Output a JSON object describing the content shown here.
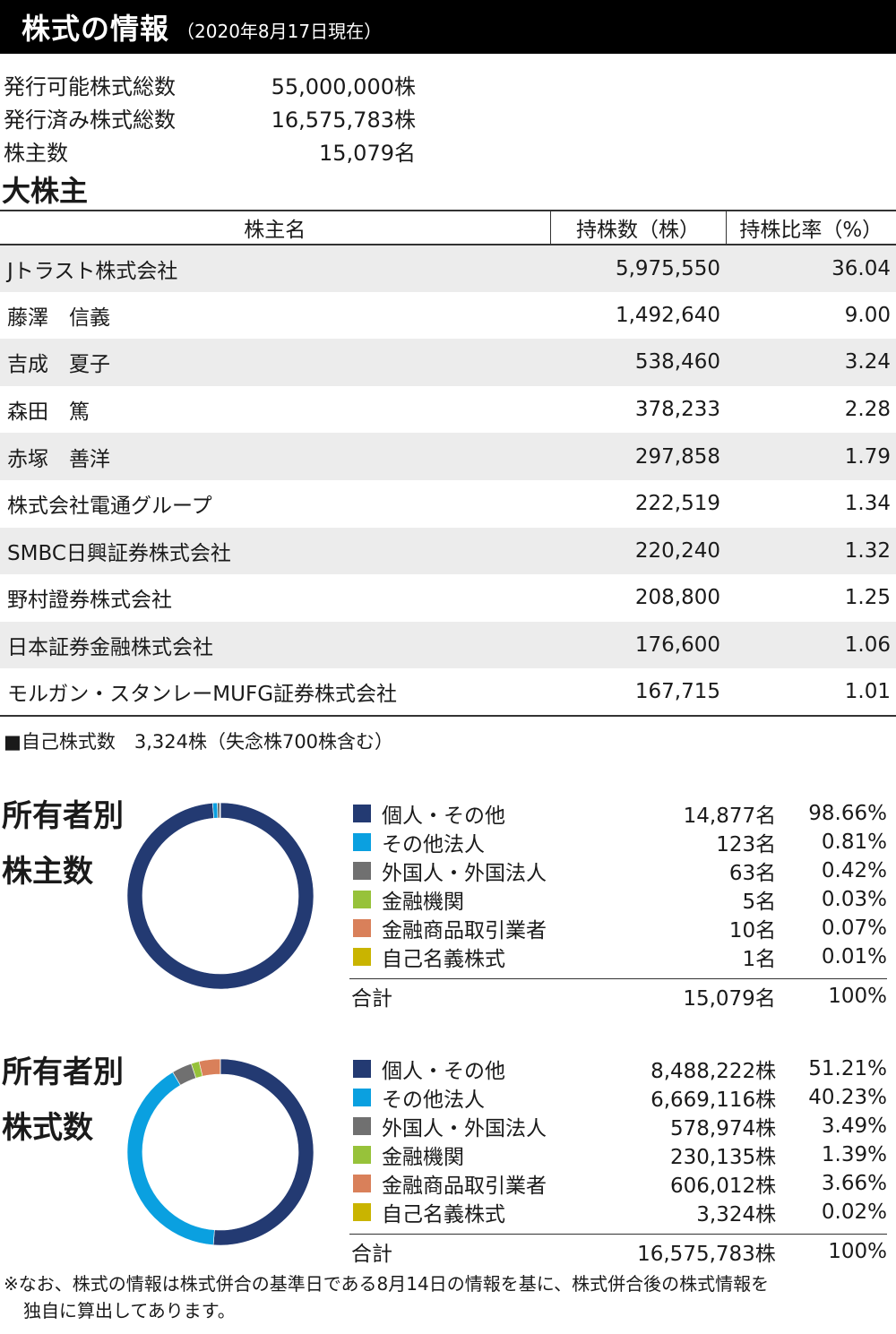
{
  "header": {
    "title": "株式の情報",
    "date": "（2020年8月17日現在）"
  },
  "stats": [
    {
      "label": "発行可能株式総数",
      "value": "55,000,000株"
    },
    {
      "label": "発行済み株式総数",
      "value": "16,575,783株"
    },
    {
      "label": "株主数",
      "value": "15,079名"
    }
  ],
  "major_title": "大株主",
  "table": {
    "headers": [
      "株主名",
      "持株数（株）",
      "持株比率（%）"
    ],
    "rows": [
      {
        "name": "Jトラスト株式会社",
        "shares": "5,975,550",
        "ratio": "36.04"
      },
      {
        "name": "藤澤　信義",
        "shares": "1,492,640",
        "ratio": "9.00"
      },
      {
        "name": "吉成　夏子",
        "shares": "538,460",
        "ratio": "3.24"
      },
      {
        "name": "森田　篤",
        "shares": "378,233",
        "ratio": "2.28"
      },
      {
        "name": "赤塚　善洋",
        "shares": "297,858",
        "ratio": "1.79"
      },
      {
        "name": "株式会社電通グループ",
        "shares": "222,519",
        "ratio": "1.34"
      },
      {
        "name": "SMBC日興証券株式会社",
        "shares": "220,240",
        "ratio": "1.32"
      },
      {
        "name": "野村證券株式会社",
        "shares": "208,800",
        "ratio": "1.25"
      },
      {
        "name": "日本証券金融株式会社",
        "shares": "176,600",
        "ratio": "1.06"
      },
      {
        "name": "モルガン・スタンレーMUFG証券株式会社",
        "shares": "167,715",
        "ratio": "1.01"
      }
    ]
  },
  "self_shares_note": "■自己株式数　3,324株（失念株700株含む）",
  "colors": {
    "individual": "#233a72",
    "other_corp": "#0aa0e0",
    "foreign": "#707070",
    "financial": "#97c23a",
    "securities": "#d9805a",
    "self": "#c9b400"
  },
  "by_holders": {
    "title_line1": "所有者別",
    "title_line2": "株主数",
    "rows": [
      {
        "label": "個人・その他",
        "count": "14,877名",
        "pct": "98.66%",
        "value": 98.66,
        "color": "#233a72"
      },
      {
        "label": "その他法人",
        "count": "123名",
        "pct": "0.81%",
        "value": 0.81,
        "color": "#0aa0e0"
      },
      {
        "label": "外国人・外国法人",
        "count": "63名",
        "pct": "0.42%",
        "value": 0.42,
        "color": "#707070"
      },
      {
        "label": "金融機関",
        "count": "5名",
        "pct": "0.03%",
        "value": 0.03,
        "color": "#97c23a"
      },
      {
        "label": "金融商品取引業者",
        "count": "10名",
        "pct": "0.07%",
        "value": 0.07,
        "color": "#d9805a"
      },
      {
        "label": "自己名義株式",
        "count": "1名",
        "pct": "0.01%",
        "value": 0.01,
        "color": "#c9b400"
      }
    ],
    "total_label": "合計",
    "total_count": "15,079名",
    "total_pct": "100%"
  },
  "by_shares": {
    "title_line1": "所有者別",
    "title_line2": "株式数",
    "rows": [
      {
        "label": "個人・その他",
        "count": "8,488,222株",
        "pct": "51.21%",
        "value": 51.21,
        "color": "#233a72"
      },
      {
        "label": "その他法人",
        "count": "6,669,116株",
        "pct": "40.23%",
        "value": 40.23,
        "color": "#0aa0e0"
      },
      {
        "label": "外国人・外国法人",
        "count": "578,974株",
        "pct": "3.49%",
        "value": 3.49,
        "color": "#707070"
      },
      {
        "label": "金融機関",
        "count": "230,135株",
        "pct": "1.39%",
        "value": 1.39,
        "color": "#97c23a"
      },
      {
        "label": "金融商品取引業者",
        "count": "606,012株",
        "pct": "3.66%",
        "value": 3.66,
        "color": "#d9805a"
      },
      {
        "label": "自己名義株式",
        "count": "3,324株",
        "pct": "0.02%",
        "value": 0.02,
        "color": "#c9b400"
      }
    ],
    "total_label": "合計",
    "total_count": "16,575,783株",
    "total_pct": "100%"
  },
  "footnote": {
    "line1": "※なお、株式の情報は株式併合の基準日である8月14日の情報を基に、株式併合後の株式情報を",
    "line2": "独自に算出してあります。"
  }
}
